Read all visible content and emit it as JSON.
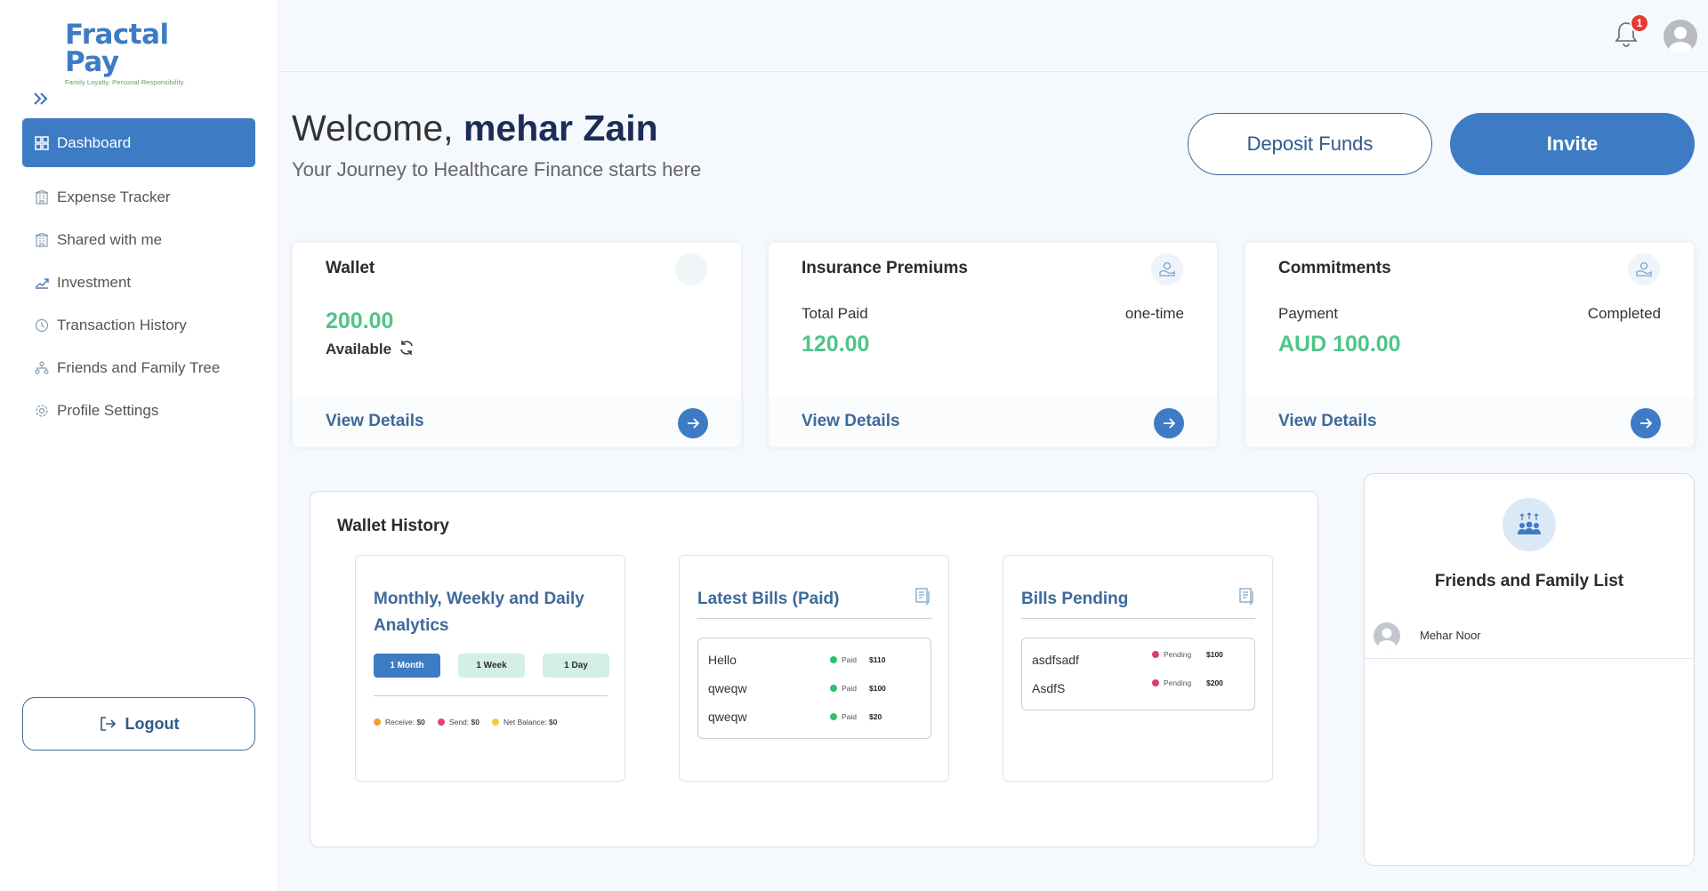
{
  "brand": {
    "name": "Fractal Pay",
    "tagline": "Family Loyalty. Personal Responsibility."
  },
  "sidebar": {
    "items": [
      {
        "label": "Dashboard",
        "icon": "grid-icon",
        "active": true
      },
      {
        "label": "Expense Tracker",
        "icon": "building-icon"
      },
      {
        "label": "Shared with me",
        "icon": "building-icon"
      },
      {
        "label": "Investment",
        "icon": "investment-icon"
      },
      {
        "label": "Transaction History",
        "icon": "history-icon"
      },
      {
        "label": "Friends and Family Tree",
        "icon": "tree-icon"
      },
      {
        "label": "Profile Settings",
        "icon": "gear-icon"
      }
    ],
    "logout_label": "Logout"
  },
  "header": {
    "notification_count": "1"
  },
  "welcome": {
    "greeting": "Welcome,",
    "user_name": "mehar Zain",
    "subtitle": "Your Journey to Healthcare Finance starts here"
  },
  "actions": {
    "deposit_label": "Deposit Funds",
    "invite_label": "Invite"
  },
  "cards": {
    "wallet": {
      "title": "Wallet",
      "amount": "200.00",
      "label": "Available",
      "link": "View Details"
    },
    "insurance": {
      "title": "Insurance Premiums",
      "left_label": "Total Paid",
      "right_label": "one-time",
      "amount": "120.00",
      "link": "View Details"
    },
    "commitments": {
      "title": "Commitments",
      "left_label": "Payment",
      "right_label": "Completed",
      "amount": "AUD 100.00",
      "link": "View Details"
    }
  },
  "wallet_history": {
    "title": "Wallet History",
    "analytics": {
      "title": "Monthly, Weekly and Daily Analytics",
      "segments": [
        "1 Month",
        "1 Week",
        "1 Day"
      ],
      "legend": [
        {
          "label": "Receive:",
          "value": "$0",
          "color": "#f0a030"
        },
        {
          "label": "Send:",
          "value": "$0",
          "color": "#e0446a"
        },
        {
          "label": "Net Balance:",
          "value": "$0",
          "color": "#f5c842"
        }
      ]
    },
    "latest_bills": {
      "title": "Latest Bills (Paid)",
      "rows": [
        {
          "name": "Hello",
          "status": "Paid",
          "amount": "$110"
        },
        {
          "name": "qweqw",
          "status": "Paid",
          "amount": "$100"
        },
        {
          "name": "qweqw",
          "status": "Paid",
          "amount": "$20"
        }
      ]
    },
    "pending_bills": {
      "title": "Bills Pending",
      "rows": [
        {
          "name": "asdfsadf",
          "status": "Pending",
          "amount": "$100"
        },
        {
          "name": "AsdfS",
          "status": "Pending",
          "amount": "$200"
        }
      ]
    }
  },
  "friends": {
    "title": "Friends and Family List",
    "members": [
      {
        "name": "Mehar Noor"
      }
    ]
  },
  "colors": {
    "primary": "#3d7cc4",
    "success": "#4fc48a",
    "paid_dot": "#2fbf6f",
    "pending_dot": "#d8406a"
  }
}
